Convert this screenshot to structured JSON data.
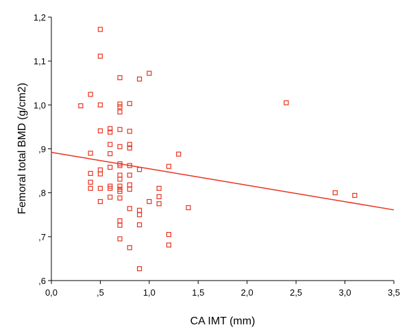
{
  "chart_data": {
    "type": "scatter",
    "title": "",
    "xlabel": "CA IMT (mm)",
    "ylabel": "Femoral  total BMD (g/cm2)",
    "xlim": [
      0.0,
      3.5
    ],
    "ylim": [
      0.6,
      1.2
    ],
    "x_ticks": [
      {
        "value": 0.0,
        "label": "0,0"
      },
      {
        "value": 0.5,
        "label": ",5"
      },
      {
        "value": 1.0,
        "label": "1,0"
      },
      {
        "value": 1.5,
        "label": "1,5"
      },
      {
        "value": 2.0,
        "label": "2,0"
      },
      {
        "value": 2.5,
        "label": "2,5"
      },
      {
        "value": 3.0,
        "label": "3,0"
      },
      {
        "value": 3.5,
        "label": "3,5"
      }
    ],
    "y_ticks": [
      {
        "value": 0.6,
        "label": ",6"
      },
      {
        "value": 0.7,
        "label": ",7"
      },
      {
        "value": 0.8,
        "label": ",8"
      },
      {
        "value": 0.9,
        "label": ",9"
      },
      {
        "value": 1.0,
        "label": "1,0"
      },
      {
        "value": 1.1,
        "label": "1,1"
      },
      {
        "value": 1.2,
        "label": "1,2"
      }
    ],
    "grid": false,
    "legend": "none",
    "marker_color": "#e8321e",
    "marker": "open-square",
    "points": [
      {
        "x": 0.3,
        "y": 0.998
      },
      {
        "x": 0.4,
        "y": 1.024
      },
      {
        "x": 0.4,
        "y": 0.89
      },
      {
        "x": 0.4,
        "y": 0.844
      },
      {
        "x": 0.4,
        "y": 0.824
      },
      {
        "x": 0.4,
        "y": 0.81
      },
      {
        "x": 0.5,
        "y": 1.172
      },
      {
        "x": 0.5,
        "y": 1.111
      },
      {
        "x": 0.5,
        "y": 1.0
      },
      {
        "x": 0.5,
        "y": 0.941
      },
      {
        "x": 0.5,
        "y": 0.852
      },
      {
        "x": 0.5,
        "y": 0.843
      },
      {
        "x": 0.5,
        "y": 0.81
      },
      {
        "x": 0.5,
        "y": 0.78
      },
      {
        "x": 0.6,
        "y": 0.946
      },
      {
        "x": 0.6,
        "y": 0.938
      },
      {
        "x": 0.6,
        "y": 0.91
      },
      {
        "x": 0.6,
        "y": 0.889
      },
      {
        "x": 0.6,
        "y": 0.858
      },
      {
        "x": 0.6,
        "y": 0.815
      },
      {
        "x": 0.6,
        "y": 0.81
      },
      {
        "x": 0.6,
        "y": 0.79
      },
      {
        "x": 0.7,
        "y": 1.062
      },
      {
        "x": 0.7,
        "y": 1.002
      },
      {
        "x": 0.7,
        "y": 0.996
      },
      {
        "x": 0.7,
        "y": 0.984
      },
      {
        "x": 0.7,
        "y": 0.944
      },
      {
        "x": 0.7,
        "y": 0.905
      },
      {
        "x": 0.7,
        "y": 0.866
      },
      {
        "x": 0.7,
        "y": 0.862
      },
      {
        "x": 0.7,
        "y": 0.84
      },
      {
        "x": 0.7,
        "y": 0.831
      },
      {
        "x": 0.7,
        "y": 0.815
      },
      {
        "x": 0.7,
        "y": 0.808
      },
      {
        "x": 0.7,
        "y": 0.803
      },
      {
        "x": 0.7,
        "y": 0.788
      },
      {
        "x": 0.7,
        "y": 0.736
      },
      {
        "x": 0.7,
        "y": 0.726
      },
      {
        "x": 0.7,
        "y": 0.695
      },
      {
        "x": 0.8,
        "y": 1.003
      },
      {
        "x": 0.8,
        "y": 0.94
      },
      {
        "x": 0.8,
        "y": 0.91
      },
      {
        "x": 0.8,
        "y": 0.902
      },
      {
        "x": 0.8,
        "y": 0.862
      },
      {
        "x": 0.8,
        "y": 0.84
      },
      {
        "x": 0.8,
        "y": 0.818
      },
      {
        "x": 0.8,
        "y": 0.808
      },
      {
        "x": 0.8,
        "y": 0.764
      },
      {
        "x": 0.8,
        "y": 0.675
      },
      {
        "x": 0.9,
        "y": 1.059
      },
      {
        "x": 0.9,
        "y": 0.853
      },
      {
        "x": 0.9,
        "y": 0.76
      },
      {
        "x": 0.9,
        "y": 0.75
      },
      {
        "x": 0.9,
        "y": 0.727
      },
      {
        "x": 0.9,
        "y": 0.627
      },
      {
        "x": 1.0,
        "y": 1.072
      },
      {
        "x": 1.0,
        "y": 0.78
      },
      {
        "x": 1.1,
        "y": 0.81
      },
      {
        "x": 1.1,
        "y": 0.791
      },
      {
        "x": 1.1,
        "y": 0.775
      },
      {
        "x": 1.2,
        "y": 0.86
      },
      {
        "x": 1.2,
        "y": 0.705
      },
      {
        "x": 1.2,
        "y": 0.681
      },
      {
        "x": 1.3,
        "y": 0.888
      },
      {
        "x": 1.4,
        "y": 0.766
      },
      {
        "x": 2.4,
        "y": 1.005
      },
      {
        "x": 2.9,
        "y": 0.8
      },
      {
        "x": 3.1,
        "y": 0.794
      }
    ],
    "fit_line": {
      "x": [
        0.0,
        3.5
      ],
      "y": [
        0.892,
        0.761
      ],
      "color": "#e8321e"
    }
  }
}
